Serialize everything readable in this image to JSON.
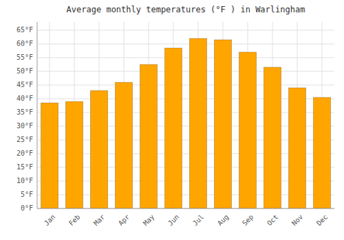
{
  "chart_data": {
    "type": "bar",
    "title": "Average monthly temperatures (°F ) in Warlingham",
    "categories": [
      "Jan",
      "Feb",
      "Mar",
      "Apr",
      "May",
      "Jun",
      "Jul",
      "Aug",
      "Sep",
      "Oct",
      "Nov",
      "Dec"
    ],
    "values": [
      38.5,
      39.0,
      43.0,
      46.0,
      52.5,
      58.5,
      62.0,
      61.5,
      57.0,
      51.5,
      44.0,
      40.5
    ],
    "color": "#FFA500",
    "ylim": [
      0,
      68
    ],
    "yticks": [
      {
        "value": 0,
        "label": "0°F"
      },
      {
        "value": 5,
        "label": "5°F"
      },
      {
        "value": 10,
        "label": "10°F"
      },
      {
        "value": 15,
        "label": "15°F"
      },
      {
        "value": 20,
        "label": "20°F"
      },
      {
        "value": 25,
        "label": "25°F"
      },
      {
        "value": 30,
        "label": "30°F"
      },
      {
        "value": 35,
        "label": "35°F"
      },
      {
        "value": 40,
        "label": "40°F"
      },
      {
        "value": 45,
        "label": "45°F"
      },
      {
        "value": 50,
        "label": "50°F"
      },
      {
        "value": 55,
        "label": "55°F"
      },
      {
        "value": 60,
        "label": "60°F"
      },
      {
        "value": 65,
        "label": "65°F"
      }
    ],
    "grid": true
  }
}
